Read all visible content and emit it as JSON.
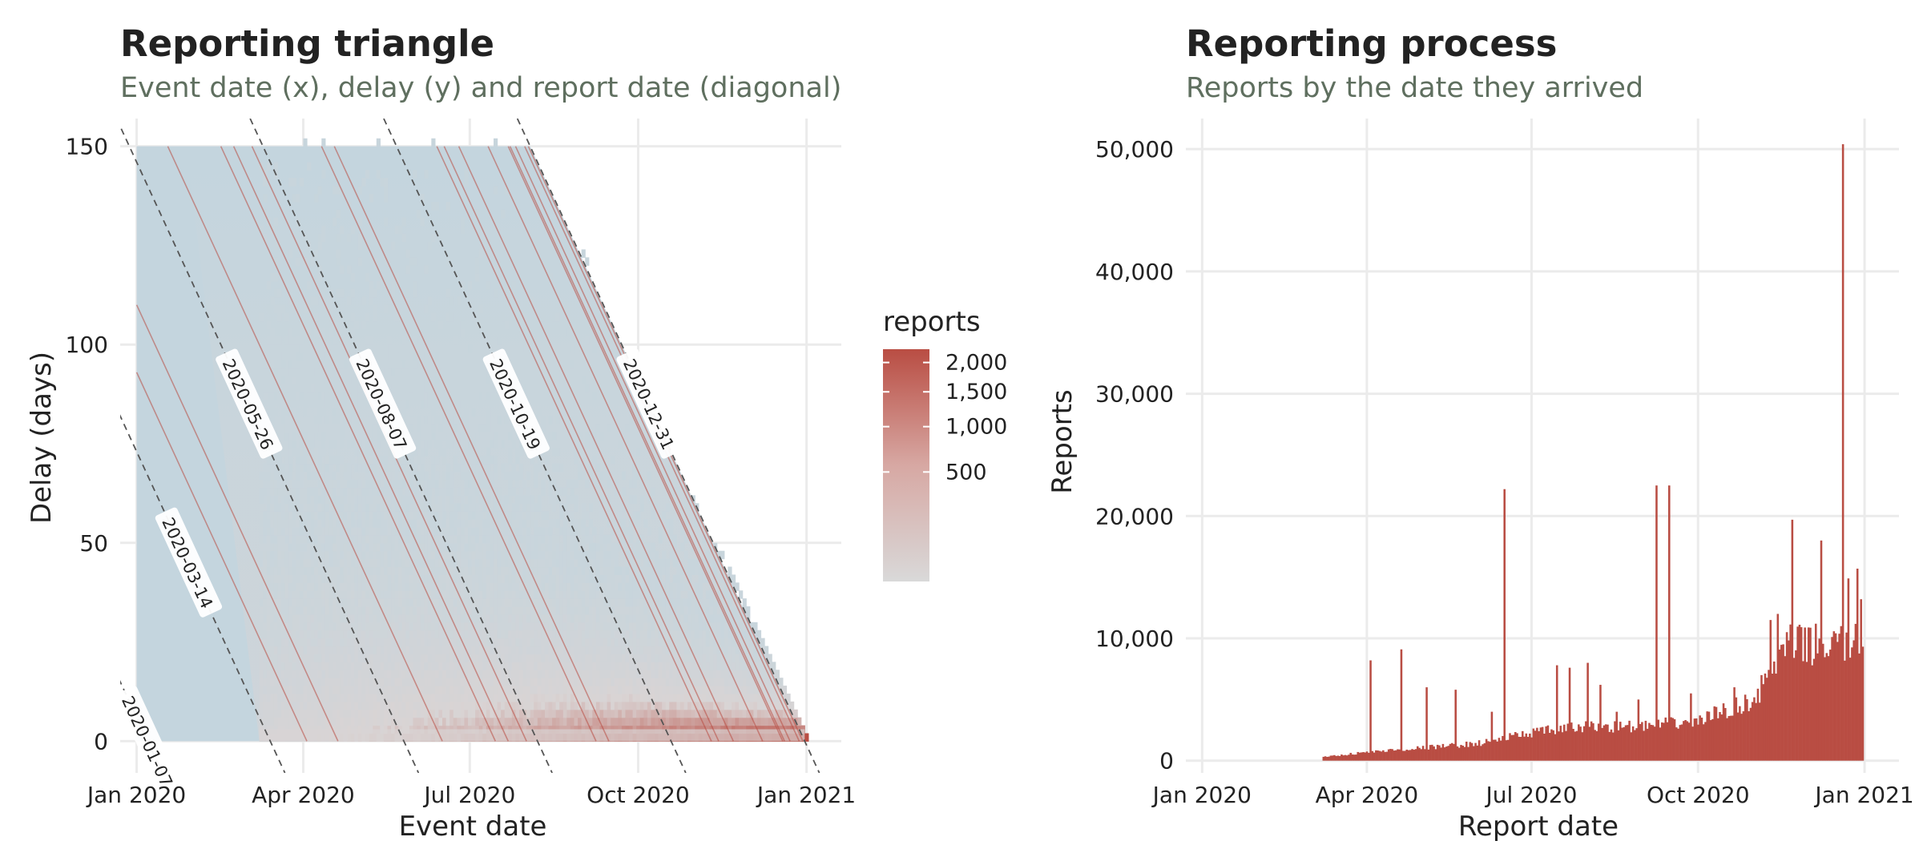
{
  "colors": {
    "bar": "#b94d43",
    "grid": "#ebebeb",
    "heat_low": "#c4d5de",
    "heat_mid": "#d9d4d4",
    "heat_high": "#b94d43",
    "text": "#222222",
    "subtitle": "#5f6f5f",
    "diagonal": "#555555"
  },
  "chart_data": [
    {
      "type": "heatmap",
      "title": "Reporting triangle",
      "subtitle": "Event date (x), delay (y) and report date (diagonal)",
      "xlabel": "Event date",
      "ylabel": "Delay (days)",
      "x_ticks": [
        "Jan 2020",
        "Apr 2020",
        "Jul 2020",
        "Oct 2020",
        "Jan 2021"
      ],
      "x_tick_dates": [
        "2020-01-01",
        "2020-04-01",
        "2020-07-01",
        "2020-10-01",
        "2021-01-01"
      ],
      "xlim": [
        "2019-12-23",
        "2021-01-20"
      ],
      "y_ticks": [
        0,
        50,
        100,
        150
      ],
      "ylim": [
        -8,
        157
      ],
      "event_date_range": [
        "2020-01-01",
        "2020-12-31"
      ],
      "max_delay": 150,
      "last_report_date": "2020-12-31",
      "diagonals": [
        "2020-01-07",
        "2020-03-14",
        "2020-05-26",
        "2020-08-07",
        "2020-10-19",
        "2020-12-31"
      ],
      "legend": {
        "title": "reports",
        "breaks": [
          500,
          1000,
          1500,
          2000
        ],
        "break_labels": [
          "500",
          "1,000",
          "1,500",
          "2,000"
        ],
        "range": [
          0,
          2250
        ],
        "scale": "sqrt",
        "position": "right"
      },
      "grid": true
    },
    {
      "type": "bar",
      "title": "Reporting process",
      "subtitle": "Reports by the date they arrived",
      "xlabel": "Report date",
      "ylabel": "Reports",
      "x_ticks": [
        "Jan 2020",
        "Apr 2020",
        "Jul 2020",
        "Oct 2020",
        "Jan 2021"
      ],
      "x_tick_dates": [
        "2020-01-01",
        "2020-04-01",
        "2020-07-01",
        "2020-10-01",
        "2021-01-01"
      ],
      "xlim": [
        "2019-12-23",
        "2021-01-20"
      ],
      "y_ticks": [
        0,
        10000,
        20000,
        30000,
        40000,
        50000
      ],
      "y_tick_labels": [
        "0",
        "10,000",
        "20,000",
        "30,000",
        "40,000",
        "50,000"
      ],
      "ylim": [
        -1000,
        52500
      ],
      "grid": true,
      "daily_reports": {
        "start": "2020-03-08",
        "end": "2020-12-31",
        "trend_dates": [
          "2020-03-08",
          "2020-04-01",
          "2020-06-01",
          "2020-07-01",
          "2020-08-01",
          "2020-09-01",
          "2020-10-01",
          "2020-11-01",
          "2020-11-20",
          "2020-12-31"
        ],
        "trend_values": [
          300,
          700,
          1400,
          2300,
          2800,
          2800,
          3300,
          5000,
          9500,
          9500
        ],
        "spikes": [
          {
            "date": "2020-04-03",
            "value": 8200
          },
          {
            "date": "2020-04-20",
            "value": 9100
          },
          {
            "date": "2020-05-04",
            "value": 6000
          },
          {
            "date": "2020-05-20",
            "value": 5800
          },
          {
            "date": "2020-06-09",
            "value": 4000
          },
          {
            "date": "2020-06-16",
            "value": 22200
          },
          {
            "date": "2020-07-15",
            "value": 7800
          },
          {
            "date": "2020-07-22",
            "value": 7600
          },
          {
            "date": "2020-08-01",
            "value": 8000
          },
          {
            "date": "2020-08-08",
            "value": 6200
          },
          {
            "date": "2020-08-17",
            "value": 4000
          },
          {
            "date": "2020-08-29",
            "value": 5000
          },
          {
            "date": "2020-09-08",
            "value": 22500
          },
          {
            "date": "2020-09-15",
            "value": 22500
          },
          {
            "date": "2020-09-27",
            "value": 5500
          },
          {
            "date": "2020-10-21",
            "value": 6000
          },
          {
            "date": "2020-11-10",
            "value": 11500
          },
          {
            "date": "2020-11-14",
            "value": 12000
          },
          {
            "date": "2020-11-22",
            "value": 19700
          },
          {
            "date": "2020-12-08",
            "value": 18000
          },
          {
            "date": "2020-12-19",
            "value": 11000
          },
          {
            "date": "2020-12-20",
            "value": 50400
          },
          {
            "date": "2020-12-23",
            "value": 14900
          },
          {
            "date": "2020-12-28",
            "value": 15700
          },
          {
            "date": "2020-12-30",
            "value": 13200
          }
        ]
      }
    }
  ]
}
